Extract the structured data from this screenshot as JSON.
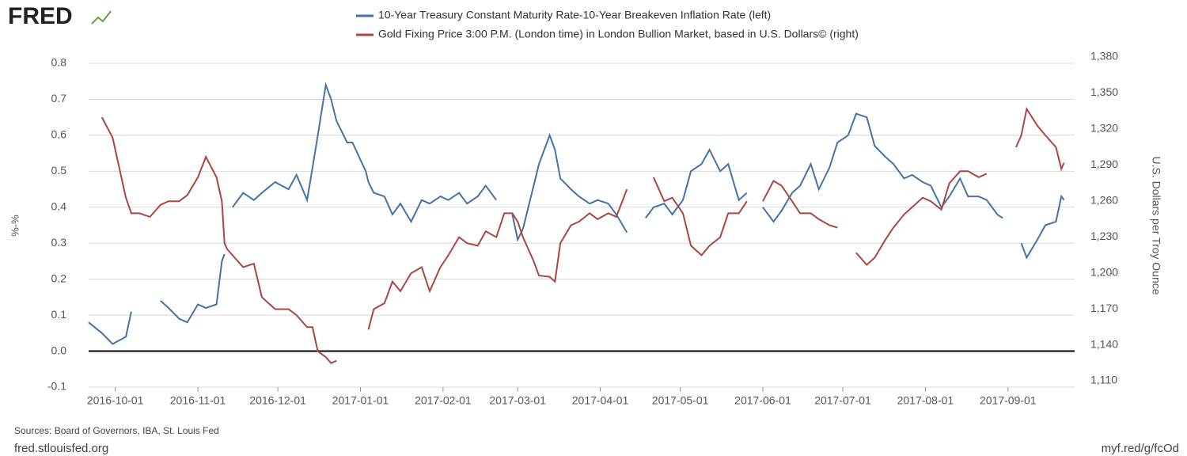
{
  "brand": "FRED",
  "chart_data": {
    "type": "line",
    "left_axis_label": "%-%",
    "right_axis_label": "U.S. Dollars per Troy Ounce",
    "x": [
      "2016-09-21",
      "2016-09-26",
      "2016-09-30",
      "2016-10-05",
      "2016-10-07",
      "2016-10-10",
      "2016-10-14",
      "2016-10-18",
      "2016-10-21",
      "2016-10-25",
      "2016-10-28",
      "2016-11-01",
      "2016-11-04",
      "2016-11-08",
      "2016-11-10",
      "2016-11-11",
      "2016-11-12",
      "2016-11-14",
      "2016-11-18",
      "2016-11-22",
      "2016-11-25",
      "2016-11-30",
      "2016-12-05",
      "2016-12-08",
      "2016-12-12",
      "2016-12-14",
      "2016-12-16",
      "2016-12-19",
      "2016-12-21",
      "2016-12-23",
      "2016-12-27",
      "2016-12-29",
      "2017-01-03",
      "2017-01-04",
      "2017-01-06",
      "2017-01-10",
      "2017-01-13",
      "2017-01-16",
      "2017-01-20",
      "2017-01-24",
      "2017-01-27",
      "2017-01-31",
      "2017-02-03",
      "2017-02-07",
      "2017-02-10",
      "2017-02-14",
      "2017-02-17",
      "2017-02-21",
      "2017-02-24",
      "2017-02-27",
      "2017-03-01",
      "2017-03-03",
      "2017-03-07",
      "2017-03-09",
      "2017-03-13",
      "2017-03-15",
      "2017-03-17",
      "2017-03-21",
      "2017-03-24",
      "2017-03-28",
      "2017-03-31",
      "2017-04-04",
      "2017-04-07",
      "2017-04-11",
      "2017-04-13",
      "2017-04-18",
      "2017-04-21",
      "2017-04-25",
      "2017-04-28",
      "2017-05-02",
      "2017-05-05",
      "2017-05-09",
      "2017-05-12",
      "2017-05-16",
      "2017-05-19",
      "2017-05-23",
      "2017-05-26",
      "2017-05-29",
      "2017-06-01",
      "2017-06-05",
      "2017-06-08",
      "2017-06-12",
      "2017-06-15",
      "2017-06-19",
      "2017-06-22",
      "2017-06-26",
      "2017-06-29",
      "2017-07-03",
      "2017-07-06",
      "2017-07-10",
      "2017-07-13",
      "2017-07-17",
      "2017-07-20",
      "2017-07-24",
      "2017-07-27",
      "2017-07-31",
      "2017-08-03",
      "2017-08-07",
      "2017-08-10",
      "2017-08-14",
      "2017-08-17",
      "2017-08-21",
      "2017-08-24",
      "2017-08-28",
      "2017-08-30",
      "2017-09-04",
      "2017-09-06",
      "2017-09-08",
      "2017-09-12",
      "2017-09-15",
      "2017-09-19",
      "2017-09-21",
      "2017-09-22"
    ],
    "series": [
      {
        "name": "10-Year Treasury Constant Maturity Rate-10-Year Breakeven Inflation Rate (left)",
        "color": "#4572a7",
        "values": [
          0.08,
          0.05,
          0.02,
          0.04,
          0.11,
          null,
          null,
          0.14,
          0.12,
          0.09,
          0.08,
          0.13,
          0.12,
          0.13,
          0.25,
          0.27,
          null,
          0.4,
          0.44,
          0.42,
          0.44,
          0.47,
          0.45,
          0.49,
          0.42,
          0.51,
          0.6,
          0.74,
          0.7,
          0.64,
          0.58,
          0.58,
          0.5,
          0.47,
          0.44,
          0.43,
          0.38,
          0.41,
          0.36,
          0.42,
          0.41,
          0.43,
          0.42,
          0.44,
          0.41,
          0.43,
          0.46,
          0.42,
          null,
          0.38,
          0.31,
          0.34,
          0.46,
          0.52,
          0.6,
          0.56,
          0.48,
          0.45,
          0.43,
          0.41,
          0.42,
          0.41,
          0.38,
          0.33,
          null,
          0.37,
          0.4,
          0.41,
          0.38,
          0.42,
          0.5,
          0.52,
          0.56,
          0.5,
          0.52,
          0.42,
          0.44,
          null,
          0.4,
          0.36,
          0.39,
          0.44,
          0.46,
          0.52,
          0.45,
          0.51,
          0.58,
          0.6,
          0.66,
          0.65,
          0.57,
          0.54,
          0.52,
          0.48,
          0.49,
          0.47,
          0.46,
          0.4,
          0.43,
          0.48,
          0.43,
          0.43,
          0.42,
          0.38,
          0.37,
          null,
          0.3,
          0.26,
          0.31,
          0.35,
          0.36,
          0.43,
          0.42
        ]
      },
      {
        "name": "Gold Fixing Price 3:00 P.M. (London time) in London Bullion Market, based in U.S. Dollars© (right)",
        "color": "#aa4643",
        "axis": "y2",
        "values": [
          null,
          1335,
          1318,
          1268,
          1255,
          1255,
          1252,
          1262,
          1265,
          1265,
          1270,
          1285,
          1302,
          1285,
          1265,
          1230,
          1225,
          1220,
          1210,
          1213,
          1185,
          1175,
          1175,
          1170,
          1160,
          1160,
          1140,
          1135,
          1130,
          1132,
          null,
          1135,
          null,
          1158,
          1175,
          1180,
          1198,
          1190,
          1205,
          1210,
          1190,
          1210,
          1220,
          1235,
          1230,
          1228,
          1240,
          1235,
          1255,
          1255,
          1248,
          1235,
          1215,
          1203,
          1202,
          1198,
          1230,
          1245,
          1248,
          1255,
          1250,
          1255,
          1252,
          1275,
          null,
          null,
          1285,
          1265,
          1268,
          1255,
          1228,
          1220,
          1228,
          1235,
          1255,
          1255,
          1265,
          null,
          1265,
          1282,
          1278,
          1265,
          1255,
          1255,
          1250,
          1245,
          1243,
          null,
          1222,
          1212,
          1218,
          1233,
          1243,
          1254,
          1260,
          1268,
          1265,
          1258,
          1280,
          1290,
          1290,
          1285,
          1288,
          null,
          null,
          1310,
          1320,
          1342,
          1328,
          1320,
          1310,
          1292,
          1297
        ]
      }
    ],
    "xlim": [
      "2016-09-21",
      "2017-09-26"
    ],
    "xticks": [
      "2016-10-01",
      "2016-11-01",
      "2016-12-01",
      "2017-01-01",
      "2017-02-01",
      "2017-03-01",
      "2017-04-01",
      "2017-05-01",
      "2017-06-01",
      "2017-07-01",
      "2017-08-01",
      "2017-09-01"
    ],
    "ylim": [
      -0.1,
      0.8
    ],
    "yticks": [
      -0.1,
      {
        "value": 0,
        "label": "0.0"
      },
      0.1,
      0.2,
      0.3,
      0.4,
      0.5,
      0.6,
      0.7,
      0.8
    ],
    "y2lim": [
      1110,
      1380
    ],
    "y2ticks": [
      {
        "value": 1110,
        "label": "1,110"
      },
      {
        "value": 1140,
        "label": "1,140"
      },
      {
        "value": 1170,
        "label": "1,170"
      },
      {
        "value": 1200,
        "label": "1,200"
      },
      {
        "value": 1230,
        "label": "1,230"
      },
      {
        "value": 1260,
        "label": "1,260"
      },
      {
        "value": 1290,
        "label": "1,290"
      },
      {
        "value": 1320,
        "label": "1,320"
      },
      {
        "value": 1350,
        "label": "1,350"
      },
      {
        "value": 1380,
        "label": "1,380"
      }
    ],
    "grid": true
  },
  "footer": {
    "sources": "Sources: Board of Governors, IBA, St. Louis Fed",
    "site": "fred.stlouisfed.org",
    "link": "myf.red/g/fcOd"
  }
}
